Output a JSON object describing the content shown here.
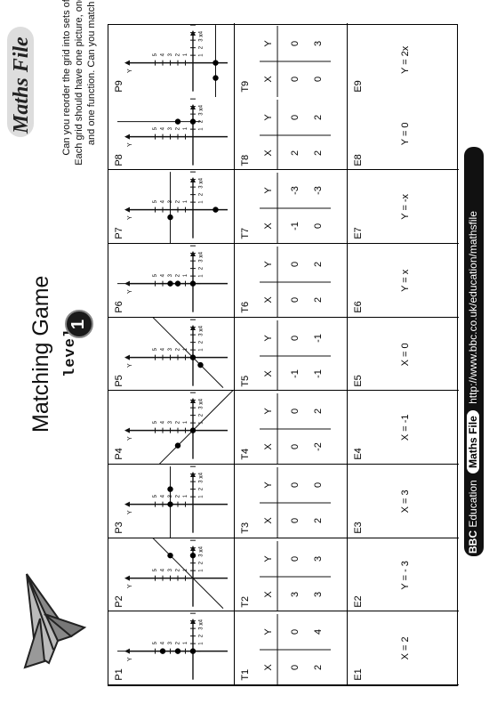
{
  "header": {
    "logo": "Maths File",
    "title": "Matching Game",
    "level_word": "level",
    "level_number": "1",
    "instructions": [
      "Can you reorder the grid into sets of three.",
      "Each grid should have one picture, one table",
      "and one function. Can you match them?"
    ]
  },
  "footer": {
    "bbc": "BBC",
    "education": "Education",
    "maths_file": "Maths File",
    "url": "http://www.bbc.co.uk/education/mathsfile"
  },
  "axes": {
    "x_label": "x",
    "y_label": "Y",
    "ticks": [
      "1",
      "2",
      "3",
      "4",
      "5"
    ],
    "neg_ticks": [
      "-1",
      "-2"
    ]
  },
  "pictures": [
    {
      "label": "P1",
      "points": [
        [
          0,
          0
        ],
        [
          0,
          2
        ],
        [
          0,
          4
        ]
      ],
      "line": "vertical-x0"
    },
    {
      "label": "P2",
      "points": [
        [
          3,
          0
        ],
        [
          3,
          3
        ]
      ],
      "line": "diag-y-eq-x"
    },
    {
      "label": "P3",
      "points": [
        [
          0,
          3
        ],
        [
          2,
          3
        ]
      ],
      "line": "horizontal-y3"
    },
    {
      "label": "P4",
      "points": [
        [
          0,
          0
        ],
        [
          -2,
          2
        ]
      ],
      "line": "diag-y-eq-negx"
    },
    {
      "label": "P5",
      "points": [
        [
          -1,
          -1
        ],
        [
          0,
          0
        ]
      ],
      "line": "diag-y-eq-x"
    },
    {
      "label": "P6",
      "points": [
        [
          0,
          0
        ],
        [
          0,
          2
        ],
        [
          0,
          3
        ]
      ],
      "line": "vertical-x0"
    },
    {
      "label": "P7",
      "points": [
        [
          0,
          -3
        ],
        [
          -1,
          3
        ]
      ],
      "line": "horizontal-y3"
    },
    {
      "label": "P8",
      "points": [
        [
          2,
          0
        ],
        [
          2,
          2
        ]
      ],
      "line": "vertical-x2"
    },
    {
      "label": "P9",
      "points": [
        [
          0,
          -3
        ],
        [
          -2,
          -3
        ]
      ],
      "line": "horizontal-yneg3"
    }
  ],
  "tables": [
    {
      "label": "T1",
      "x_head": "X",
      "y_head": "Y",
      "rows": [
        [
          "0",
          "0"
        ],
        [
          "2",
          "4"
        ]
      ]
    },
    {
      "label": "T2",
      "x_head": "X",
      "y_head": "Y",
      "rows": [
        [
          "3",
          "0"
        ],
        [
          "3",
          "3"
        ]
      ]
    },
    {
      "label": "T3",
      "x_head": "X",
      "y_head": "Y",
      "rows": [
        [
          "0",
          "0"
        ],
        [
          "2",
          "0"
        ]
      ]
    },
    {
      "label": "T4",
      "x_head": "X",
      "y_head": "Y",
      "rows": [
        [
          "0",
          "0"
        ],
        [
          "-2",
          "2"
        ]
      ]
    },
    {
      "label": "T5",
      "x_head": "X",
      "y_head": "Y",
      "rows": [
        [
          "-1",
          "0"
        ],
        [
          "-1",
          "-1"
        ]
      ]
    },
    {
      "label": "T6",
      "x_head": "X",
      "y_head": "Y",
      "rows": [
        [
          "0",
          "0"
        ],
        [
          "2",
          "2"
        ]
      ]
    },
    {
      "label": "T7",
      "x_head": "X",
      "y_head": "Y",
      "rows": [
        [
          "-1",
          "-3"
        ],
        [
          "0",
          "-3"
        ]
      ]
    },
    {
      "label": "T8",
      "x_head": "X",
      "y_head": "Y",
      "rows": [
        [
          "2",
          "0"
        ],
        [
          "2",
          "2"
        ]
      ]
    },
    {
      "label": "T9",
      "x_head": "X",
      "y_head": "Y",
      "rows": [
        [
          "0",
          "0"
        ],
        [
          "0",
          "3"
        ]
      ]
    }
  ],
  "equations": [
    {
      "label": "E1",
      "text": "X = 2"
    },
    {
      "label": "E2",
      "text": "Y = - 3"
    },
    {
      "label": "E3",
      "text": "X = 3"
    },
    {
      "label": "E4",
      "text": "X = -1"
    },
    {
      "label": "E5",
      "text": "X = 0"
    },
    {
      "label": "E6",
      "text": "Y = x"
    },
    {
      "label": "E7",
      "text": "Y = -x"
    },
    {
      "label": "E8",
      "text": "Y = 0"
    },
    {
      "label": "E9",
      "text": "Y = 2x"
    }
  ]
}
